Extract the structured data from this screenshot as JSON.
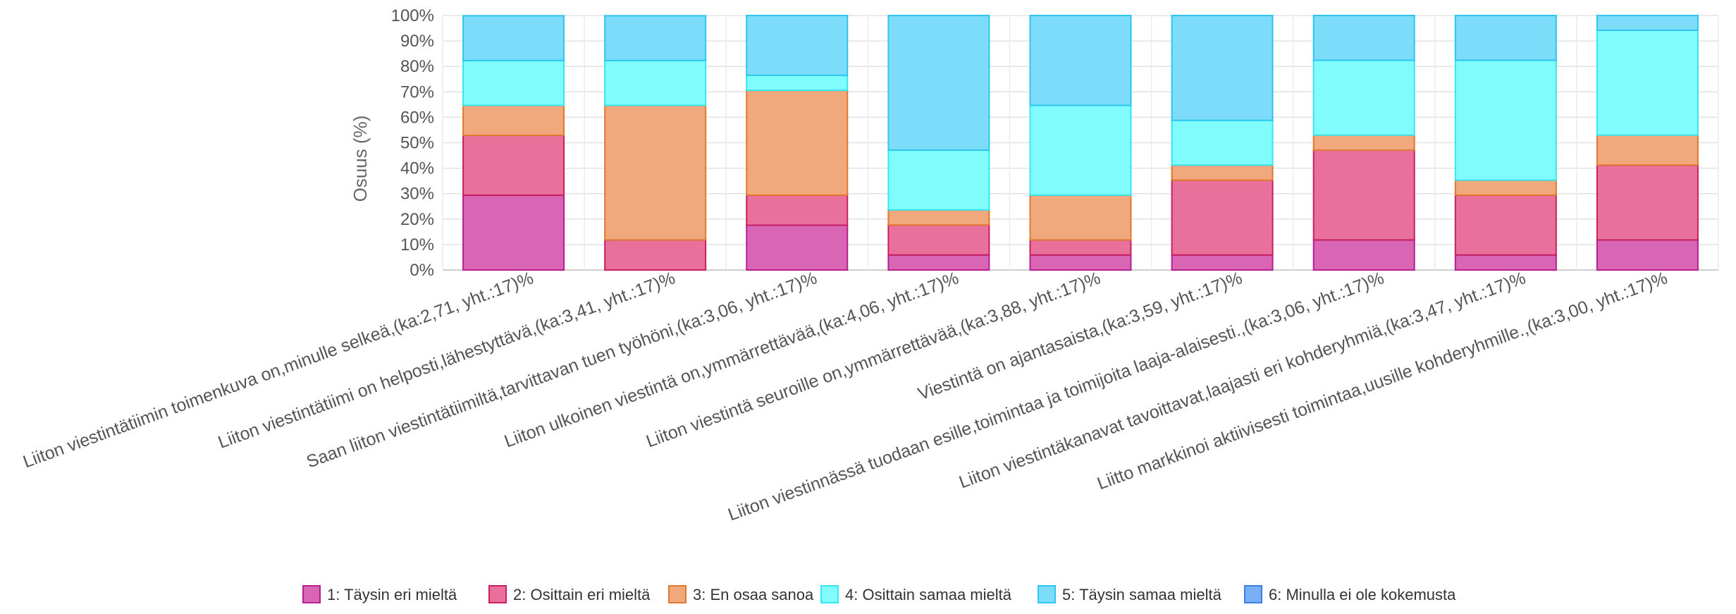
{
  "chart_data": {
    "type": "bar",
    "stacked": true,
    "ylabel": "Osuus (%)",
    "ylim": [
      0,
      100
    ],
    "yticks": [
      "0%",
      "10%",
      "20%",
      "30%",
      "40%",
      "50%",
      "60%",
      "70%",
      "80%",
      "90%",
      "100%"
    ],
    "grid": true,
    "legend_position": "bottom",
    "categories": [
      "Liiton viestintätiimin toimenkuva on,minulle selkeä,(ka:2,71, yht.:17)%",
      "Liiton viestintätiimi on helposti,lähestyttävä,(ka:3,41, yht.:17)%",
      "Saan liiton viestintätiimiltä,tarvittavan tuen työhöni,(ka:3,06, yht.:17)%",
      "Liiton ulkoinen viestintä  on,ymmärrettävää,(ka:4,06, yht.:17)%",
      "Liiton viestintä seuroille on,ymmärrettävää,(ka:3,88, yht.:17)%",
      "Viestintä on ajantasaista,(ka:3,59, yht.:17)%",
      "Liiton viestinnässä tuodaan esille,toimintaa ja toimijoita laaja-alaisesti.,(ka:3,06, yht.:17)%",
      "Liiton viestintäkanavat tavoittavat,laajasti eri kohderyhmiä,(ka:3,47, yht.:17)%",
      "Liitto markkinoi aktiivisesti toimintaa,uusille kohderyhmille.,(ka:3,00, yht.:17)%"
    ],
    "series": [
      {
        "name": "1: Täysin eri mieltä",
        "color": "#d966b5",
        "values": [
          29.4,
          0,
          17.6,
          5.9,
          5.9,
          5.9,
          11.8,
          5.9,
          11.8
        ]
      },
      {
        "name": "2: Osittain eri mieltä",
        "color": "#e8709a",
        "values": [
          23.5,
          11.8,
          11.8,
          11.8,
          5.9,
          29.4,
          35.3,
          23.5,
          29.4
        ]
      },
      {
        "name": "3: En osaa sanoa",
        "color": "#f0a87c",
        "values": [
          11.8,
          52.9,
          41.2,
          5.9,
          17.6,
          5.9,
          5.9,
          5.9,
          11.8
        ]
      },
      {
        "name": "4: Osittain samaa mieltä",
        "color": "#80fcfc",
        "values": [
          17.6,
          17.6,
          5.9,
          23.5,
          35.3,
          17.6,
          29.4,
          47.1,
          41.2
        ]
      },
      {
        "name": "5: Täysin samaa mieltä",
        "color": "#7ddcfa",
        "values": [
          17.6,
          17.6,
          23.5,
          52.9,
          35.3,
          41.2,
          17.6,
          17.6,
          5.9
        ]
      },
      {
        "name": "6: Minulla ei ole kokemusta",
        "color": "#7aaef5",
        "values": [
          0,
          0,
          0,
          0,
          0,
          0,
          0,
          0,
          0
        ]
      }
    ]
  },
  "stroke_colors": [
    "#b51f8f",
    "#c81e64",
    "#e0782e",
    "#36e6f0",
    "#2cc6ee",
    "#3a7fe0"
  ]
}
